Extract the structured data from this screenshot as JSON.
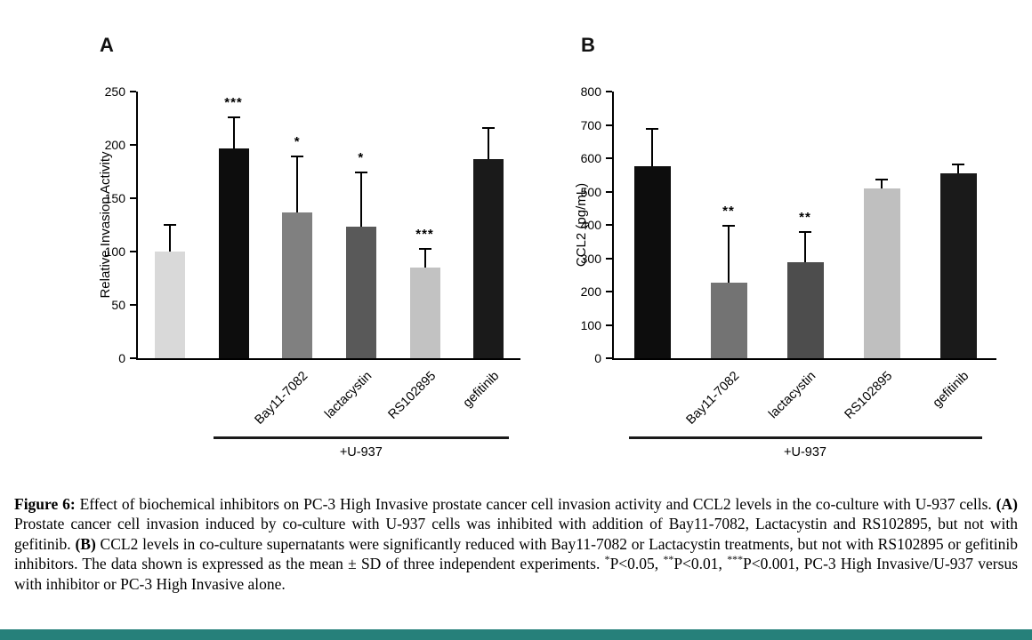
{
  "page": {
    "background": "#ffffff",
    "footer_bar_color": "#26807a"
  },
  "figure": {
    "caption_segments": [
      {
        "text": "Figure 6: ",
        "bold": true
      },
      {
        "text": "Effect of biochemical inhibitors on PC-3 High Invasive prostate cancer cell invasion activity and CCL2 levels in the co-culture with U-937 cells. "
      },
      {
        "text": "(A)",
        "bold": true
      },
      {
        "text": " Prostate cancer cell invasion induced by co-culture with U-937 cells was inhibited with addition of Bay11-7082, Lactacystin and RS102895, but not with gefitinib. "
      },
      {
        "text": "(B)",
        "bold": true
      },
      {
        "text": " CCL2 levels in co-culture supernatants were significantly reduced with Bay11-7082 or Lactacystin treatments, but not with RS102895 or gefitinib inhibitors. The data shown is expressed as the mean ± SD of three independent experiments. "
      },
      {
        "text": "*",
        "sup": true
      },
      {
        "text": "P<0.05, "
      },
      {
        "text": "**",
        "sup": true
      },
      {
        "text": "P<0.01, "
      },
      {
        "text": "***",
        "sup": true
      },
      {
        "text": "P<0.001, PC-3 High Invasive/U-937 versus with inhibitor or PC-3 High Invasive alone."
      }
    ]
  },
  "chart_data": [
    {
      "type": "bar",
      "panel": "A",
      "ylabel": "Relative Invasion Activity",
      "xlabel": "",
      "ylim": [
        0,
        250
      ],
      "yticks": [
        0,
        50,
        100,
        150,
        200,
        250
      ],
      "grid": false,
      "legend": "none",
      "categories": [
        "",
        "",
        "Bay11-7082",
        "lactacystin",
        "RS102895",
        "gefitinib"
      ],
      "values": [
        100,
        197,
        137,
        123,
        85,
        187
      ],
      "errors": [
        26,
        30,
        53,
        52,
        18,
        30
      ],
      "significance": [
        "",
        "***",
        "*",
        "*",
        "***",
        ""
      ],
      "bar_colors": [
        "#d9d9d9",
        "#0d0d0d",
        "#808080",
        "#595959",
        "#c2c2c2",
        "#1a1a1a"
      ],
      "group_label": "+U-937",
      "group_span": [
        1,
        5
      ]
    },
    {
      "type": "bar",
      "panel": "B",
      "ylabel": "CCL2 (pg/mL)",
      "xlabel": "",
      "ylim": [
        0,
        800
      ],
      "yticks": [
        0,
        100,
        200,
        300,
        400,
        500,
        600,
        700,
        800
      ],
      "grid": false,
      "legend": "none",
      "categories": [
        "",
        "Bay11-7082",
        "lactacystin",
        "RS102895",
        "gefitinib"
      ],
      "values": [
        575,
        227,
        288,
        510,
        555
      ],
      "errors": [
        115,
        173,
        93,
        30,
        29
      ],
      "significance": [
        "",
        "**",
        "**",
        "",
        ""
      ],
      "bar_colors": [
        "#0d0d0d",
        "#737373",
        "#4d4d4d",
        "#bfbfbf",
        "#1a1a1a"
      ],
      "group_label": "+U-937",
      "group_span": [
        0,
        4
      ]
    }
  ]
}
